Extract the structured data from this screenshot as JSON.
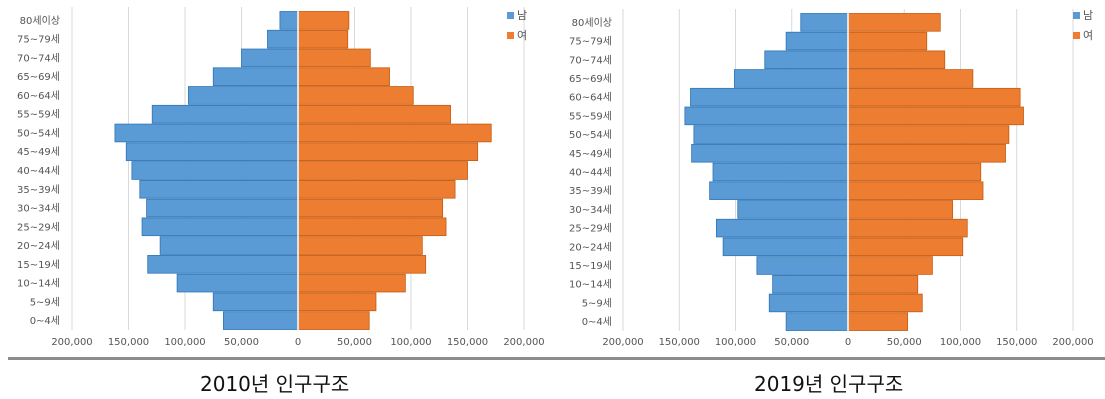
{
  "captions": [
    "2010년 인구구조",
    "2019년 인구구조"
  ],
  "legend": {
    "male": "남",
    "female": "여"
  },
  "colors": {
    "male": "#5b9bd5",
    "female": "#ed7d31",
    "grid": "#d9d9d9",
    "divider": "#8c8c8c"
  },
  "chart_data": [
    {
      "type": "bar",
      "orientation": "horizontal-population-pyramid",
      "title": "2010년 인구구조",
      "categories": [
        "80세이상",
        "75~79세",
        "70~74세",
        "65~69세",
        "60~64세",
        "55~59세",
        "50~54세",
        "45~49세",
        "40~44세",
        "35~39세",
        "30~34세",
        "25~29세",
        "20~24세",
        "15~19세",
        "10~14세",
        "5~9세",
        "0~4세"
      ],
      "series": [
        {
          "name": "남",
          "values": [
            16000,
            27000,
            50000,
            75000,
            97000,
            129000,
            162000,
            152000,
            147000,
            140000,
            134000,
            138000,
            122000,
            133000,
            107000,
            75000,
            66000
          ]
        },
        {
          "name": "여",
          "values": [
            45000,
            44000,
            64000,
            81000,
            102000,
            135000,
            171000,
            159000,
            150000,
            139000,
            128000,
            131000,
            110000,
            113000,
            95000,
            69000,
            63000
          ]
        }
      ],
      "xlim": [
        -200000,
        200000
      ],
      "x_ticks": [
        "200,000",
        "150,000",
        "100,000",
        "50,000",
        "0",
        "50,000",
        "100,000",
        "150,000",
        "200,000"
      ],
      "legend_position": "top-right",
      "grid": true
    },
    {
      "type": "bar",
      "orientation": "horizontal-population-pyramid",
      "title": "2019년 인구구조",
      "categories": [
        "80세이상",
        "75~79세",
        "70~74세",
        "65~69세",
        "60~64세",
        "55~59세",
        "50~54세",
        "45~49세",
        "40~44세",
        "35~39세",
        "30~34세",
        "25~29세",
        "20~24세",
        "15~19세",
        "10~14세",
        "5~9세",
        "0~4세"
      ],
      "series": [
        {
          "name": "남",
          "values": [
            42000,
            55000,
            74000,
            101000,
            140000,
            145000,
            137000,
            139000,
            120000,
            123000,
            98000,
            117000,
            111000,
            81000,
            67000,
            70000,
            55000
          ]
        },
        {
          "name": "여",
          "values": [
            82000,
            70000,
            86000,
            111000,
            153000,
            156000,
            143000,
            140000,
            118000,
            120000,
            93000,
            106000,
            102000,
            75000,
            62000,
            66000,
            53000
          ]
        }
      ],
      "xlim": [
        -200000,
        200000
      ],
      "x_ticks": [
        "200,000",
        "150,000",
        "100,000",
        "50,000",
        "0",
        "50,000",
        "100,000",
        "150,000",
        "200,000"
      ],
      "legend_position": "top-right",
      "grid": true
    }
  ]
}
